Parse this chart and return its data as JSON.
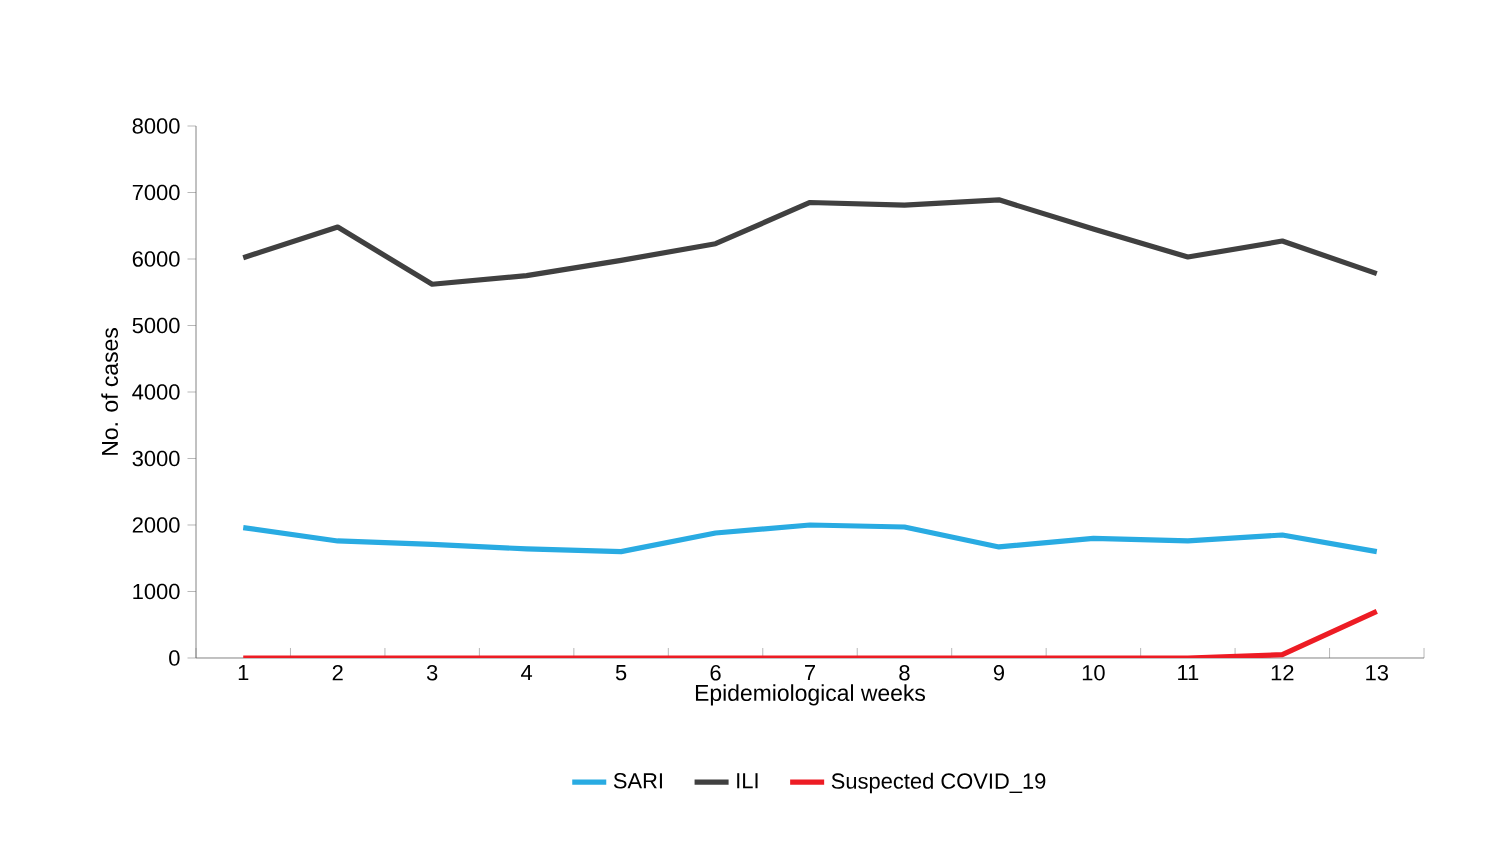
{
  "chart_data": {
    "type": "line",
    "xlabel": "Epidemiological weeks",
    "ylabel": "No. of cases",
    "categories": [
      "1",
      "2",
      "3",
      "4",
      "5",
      "6",
      "7",
      "8",
      "9",
      "10",
      "11",
      "12",
      "13"
    ],
    "series": [
      {
        "name": "SARI",
        "color": "#29abe2",
        "values": [
          1960,
          1760,
          1710,
          1640,
          1600,
          1880,
          2000,
          1970,
          1670,
          1800,
          1760,
          1850,
          1600
        ]
      },
      {
        "name": "ILI",
        "color": "#404040",
        "values": [
          6020,
          6480,
          5620,
          5750,
          5980,
          6230,
          6850,
          6810,
          6890,
          6450,
          6030,
          6270,
          5780
        ]
      },
      {
        "name": "Suspected COVID_19",
        "color": "#ed1c24",
        "values": [
          0,
          0,
          0,
          0,
          0,
          0,
          0,
          0,
          0,
          0,
          0,
          50,
          700
        ]
      }
    ],
    "ylim": [
      0,
      8000
    ],
    "yticks": [
      0,
      1000,
      2000,
      3000,
      4000,
      5000,
      6000,
      7000,
      8000
    ],
    "grid": false,
    "legend": "bottom",
    "marker": "none",
    "line_style": "solid"
  }
}
